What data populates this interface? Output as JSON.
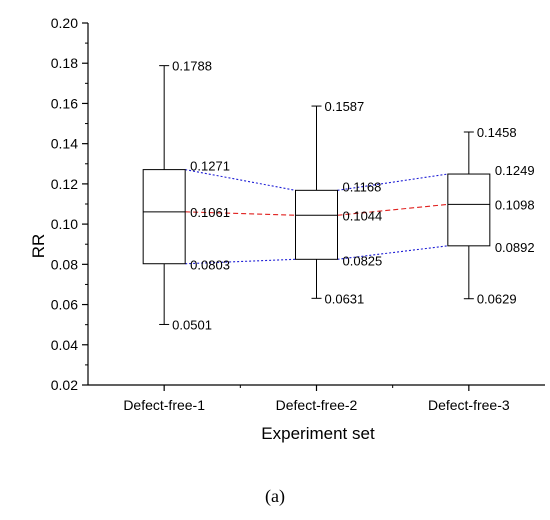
{
  "chart_data": {
    "type": "box",
    "xlabel": "Experiment set",
    "ylabel": "RR",
    "ylim": [
      0.02,
      0.2
    ],
    "yticks": [
      "0.02",
      "0.04",
      "0.06",
      "0.08",
      "0.10",
      "0.12",
      "0.14",
      "0.16",
      "0.18",
      "0.20"
    ],
    "categories": [
      "Defect-free-1",
      "Defect-free-2",
      "Defect-free-3"
    ],
    "boxes": [
      {
        "category": "Defect-free-1",
        "max": 0.1788,
        "q3": 0.1271,
        "median": 0.1061,
        "q1": 0.0803,
        "min": 0.0501,
        "labels": {
          "max": "0.1788",
          "q3": "0.1271",
          "median": "0.1061",
          "q1": "0.0803",
          "min": "0.0501"
        }
      },
      {
        "category": "Defect-free-2",
        "max": 0.1587,
        "q3": 0.1168,
        "median": 0.1044,
        "q1": 0.0825,
        "min": 0.0631,
        "labels": {
          "max": "0.1587",
          "q3": "0.1168",
          "median": "0.1044",
          "q1": "0.0825",
          "min": "0.0631"
        }
      },
      {
        "category": "Defect-free-3",
        "max": 0.1458,
        "q3": 0.1249,
        "median": 0.1098,
        "q1": 0.0892,
        "min": 0.0629,
        "labels": {
          "max": "0.1458",
          "q3": "0.1249",
          "median": "0.1098",
          "q1": "0.0892",
          "min": "0.0629"
        }
      }
    ],
    "connectors": {
      "quartiles": {
        "color": "#1f1fd6",
        "style": "dotted"
      },
      "median": {
        "color": "#e0201e",
        "style": "dashed"
      }
    },
    "grid": false,
    "caption": "(a)"
  }
}
